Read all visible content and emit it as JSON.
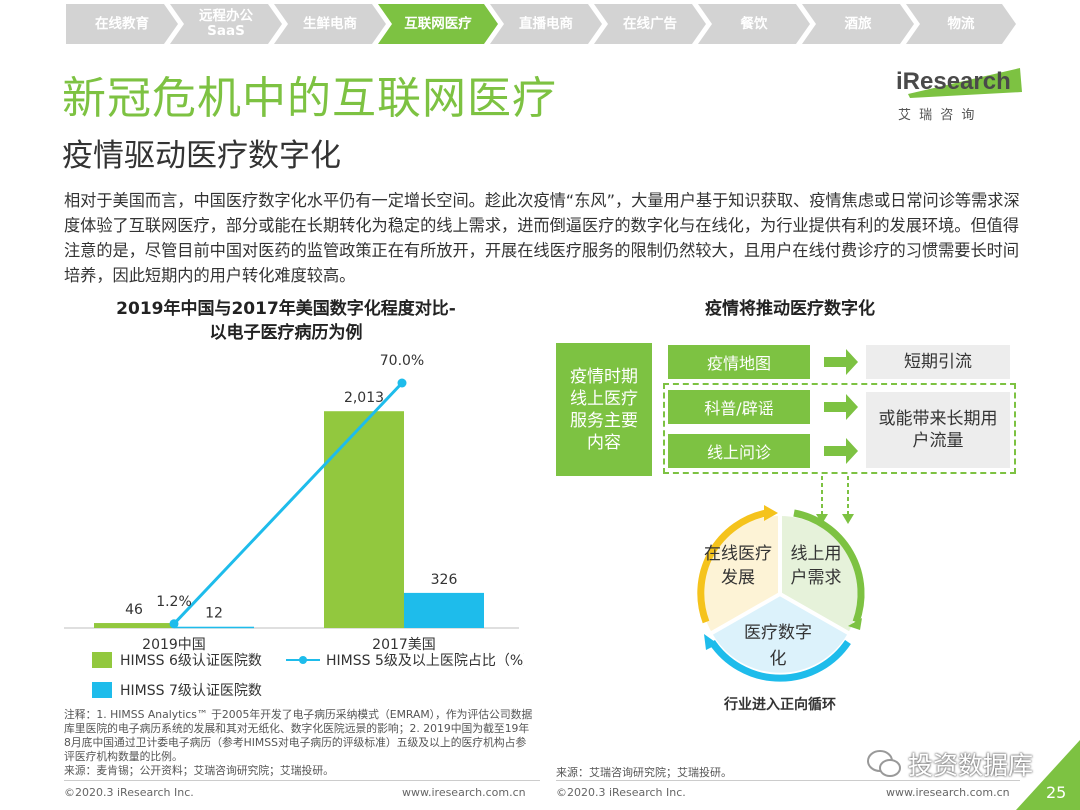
{
  "nav": {
    "items": [
      "在线教育",
      "远程办公\nSaaS",
      "生鲜电商",
      "互联网医疗",
      "直播电商",
      "在线广告",
      "餐饮",
      "酒旅",
      "物流"
    ],
    "active_index": 3
  },
  "brand": {
    "logo_text": "iResearch",
    "logo_cn": "艾 瑞 咨 询"
  },
  "header": {
    "title": "新冠危机中的互联网医疗",
    "subtitle": "疫情驱动医疗数字化"
  },
  "paragraph": "相对于美国而言，中国医疗数字化水平仍有一定增长空间。趁此次疫情“东风”，大量用户基于知识获取、疫情焦虑或日常问诊等需求深度体验了互联网医疗，部分或能在长期转化为稳定的线上需求，进而倒逼医疗的数字化与在线化，为行业提供有利的发展环境。但值得注意的是，尽管目前中国对医药的监管政策正在有所放开，开展在线医疗服务的限制仍然较大，且用户在线付费诊疗的习惯需要长时间培养，因此短期内的用户转化难度较高。",
  "left": {
    "title_line1": "2019年中国与2017年美国数字化程度对比-",
    "title_line2": "以电子医疗病历为例"
  },
  "chart_data": {
    "type": "bar",
    "categories": [
      "2019中国",
      "2017美国"
    ],
    "series": [
      {
        "name": "HIMSS 6级认证医院数",
        "type": "bar",
        "values": [
          46,
          2013
        ],
        "labels": [
          "46",
          "2,013"
        ],
        "color": "#92C83E"
      },
      {
        "name": "HIMSS 7级认证医院数",
        "type": "bar",
        "values": [
          12,
          326
        ],
        "labels": [
          "12",
          "326"
        ],
        "color": "#1EBCEB"
      },
      {
        "name": "HIMSS 5级及以上医院占比（%）",
        "type": "line",
        "values": [
          1.2,
          70.0
        ],
        "labels": [
          "1.2%",
          "70.0%"
        ],
        "color": "#1EBCEB"
      }
    ],
    "ylim_bar": [
      0,
      2600
    ],
    "ylim_line": [
      0,
      80
    ]
  },
  "note": {
    "lines": [
      "注释：1. HIMSS Analytics™ 于2005年开发了电子病历采纳模式（EMRAM），作为评估公司数据库里医院的电子病历系统的发展和其对无纸化、数字化医院远景的影响；2. 2019中国为截至19年8月底中国通过卫计委电子病历（参考HIMSS对电子病历的评级标准）五级及以上的医疗机构占参评医疗机构数量的比例。",
      "来源：麦肯锡；公开资料；艾瑞咨询研究院；艾瑞投研。"
    ]
  },
  "right": {
    "title": "疫情将推动医疗数字化",
    "main_box": "疫情时期线上医疗服务主要内容",
    "items": [
      "疫情地图",
      "科普/辟谣",
      "线上问诊"
    ],
    "results": [
      "短期引流",
      "或能带来长期用户流量"
    ],
    "cycle": [
      "在线医疗发展",
      "线上用户需求",
      "医疗数字化"
    ],
    "cycle_caption": "行业进入正向循环",
    "source": "来源：艾瑞咨询研究院；艾瑞投研。"
  },
  "footer": {
    "left_copy": "©2020.3 iResearch Inc.",
    "left_url": "www.iresearch.com.cn",
    "right_copy": "©2020.3 iResearch Inc.",
    "right_url": "www.iresearch.com.cn",
    "page": "25",
    "watermark": "投资数据库"
  }
}
